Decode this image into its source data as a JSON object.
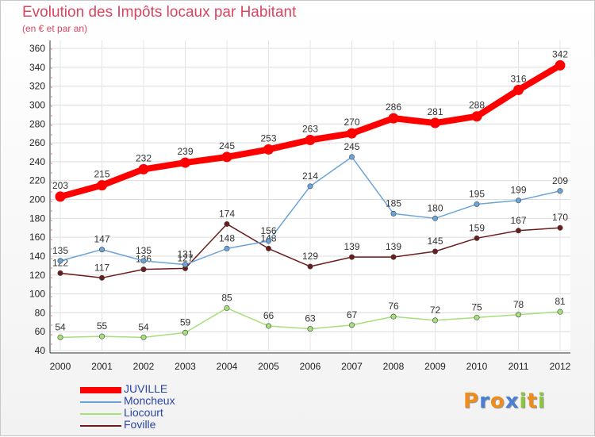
{
  "chart_data": {
    "type": "line",
    "title": "Evolution des Impôts locaux par Habitant",
    "subtitle": "(en € et par an)",
    "categories": [
      "2000",
      "2001",
      "2002",
      "2003",
      "2004",
      "2005",
      "2006",
      "2007",
      "2008",
      "2009",
      "2010",
      "2011",
      "2012"
    ],
    "ylim": [
      40,
      360
    ],
    "yticks": [
      40,
      60,
      80,
      100,
      120,
      140,
      160,
      180,
      200,
      220,
      240,
      260,
      280,
      300,
      320,
      340,
      360
    ],
    "grid": true,
    "legend_position": "bottom-left",
    "series": [
      {
        "name": "JUVILLE",
        "color": "#ff0000",
        "values": [
          203,
          215,
          232,
          239,
          245,
          253,
          263,
          270,
          286,
          281,
          288,
          316,
          342
        ]
      },
      {
        "name": "Moncheux",
        "color": "#6aa4d8",
        "values": [
          135,
          147,
          135,
          131,
          148,
          156,
          214,
          245,
          185,
          180,
          195,
          199,
          209
        ]
      },
      {
        "name": "Liocourt",
        "color": "#a5e07a",
        "values": [
          54,
          55,
          54,
          59,
          85,
          66,
          63,
          67,
          76,
          72,
          75,
          78,
          81
        ]
      },
      {
        "name": "Foville",
        "color": "#6b1c1c",
        "values": [
          122,
          117,
          126,
          127,
          174,
          148,
          129,
          139,
          139,
          145,
          159,
          167,
          170
        ]
      }
    ]
  },
  "logo": {
    "text": "Proxiti",
    "letters": [
      "P",
      "r",
      "o",
      "x",
      "i",
      "t",
      "i"
    ],
    "colors": [
      "#f08c1a",
      "#4a7fd4",
      "#f08c1a",
      "#4a7fd4",
      "#8cc63f",
      "#f08c1a",
      "#8cc63f"
    ]
  }
}
